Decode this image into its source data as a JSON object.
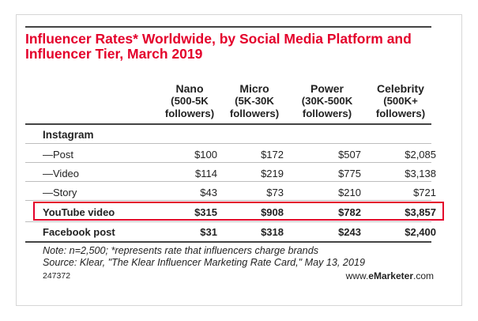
{
  "chart_data": {
    "type": "table",
    "title": "Influencer Rates* Worldwide, by Social Media Platform and Influencer Tier, March 2019",
    "columns": [
      {
        "name": "Nano",
        "sub": [
          "(500-5K",
          "followers)"
        ]
      },
      {
        "name": "Micro",
        "sub": [
          "(5K-30K",
          "followers)"
        ]
      },
      {
        "name": "Power",
        "sub": [
          "(30K-500K",
          "followers)"
        ]
      },
      {
        "name": "Celebrity",
        "sub": [
          "(500K+",
          "followers)"
        ]
      }
    ],
    "group_label": "Instagram",
    "rows": [
      {
        "label": "—Post",
        "values": [
          "$100",
          "$172",
          "$507",
          "$2,085"
        ]
      },
      {
        "label": "—Video",
        "values": [
          "$114",
          "$219",
          "$775",
          "$3,138"
        ]
      },
      {
        "label": "—Story",
        "values": [
          "$43",
          "$73",
          "$210",
          "$721"
        ]
      },
      {
        "label": "YouTube video",
        "values": [
          "$315",
          "$908",
          "$782",
          "$3,857"
        ],
        "bold": true,
        "highlighted": true
      },
      {
        "label": "Facebook post",
        "values": [
          "$31",
          "$318",
          "$243",
          "$2,400"
        ],
        "bold": true
      }
    ],
    "note": "Note: n=2,500; *represents rate that influencers charge brands",
    "source": "Source: Klear, \"The Klear Influencer Marketing Rate Card,\" May 13, 2019",
    "highlight_color": "#e4002b",
    "title_color": "#e4002b"
  },
  "footer": {
    "chart_id": "247372",
    "brand_prefix": "www.",
    "brand_bold": "eMarketer",
    "brand_suffix": ".com"
  }
}
